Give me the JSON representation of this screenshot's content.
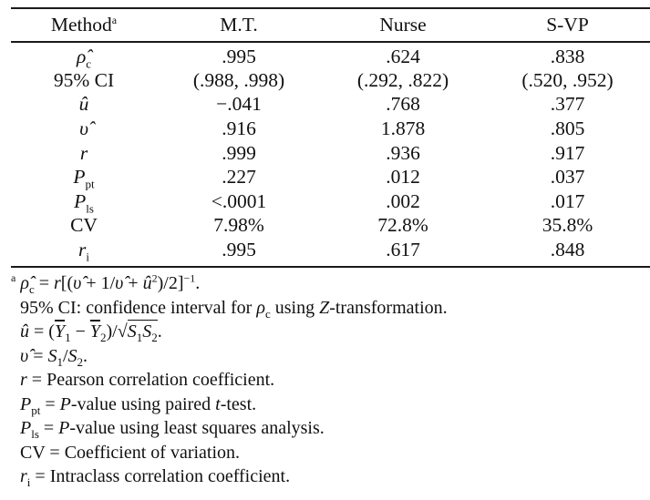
{
  "table": {
    "columns": [
      {
        "label": "Method",
        "footnote_marker": "a"
      },
      {
        "label": "M.T."
      },
      {
        "label": "Nurse"
      },
      {
        "label": "S-VP"
      }
    ],
    "rows": [
      {
        "stat": "ρ̂",
        "stat_sub": "c",
        "italic": true,
        "values": [
          ".995",
          ".624",
          ".838"
        ]
      },
      {
        "stat": "95% CI",
        "stat_sub": "",
        "italic": false,
        "values": [
          "(.988, .998)",
          "(.292, .822)",
          "(.520, .952)"
        ]
      },
      {
        "stat": "û",
        "stat_sub": "",
        "italic": true,
        "values": [
          "−.041",
          ".768",
          ".377"
        ]
      },
      {
        "stat": "υ̂",
        "stat_sub": "",
        "italic": true,
        "values": [
          ".916",
          "1.878",
          ".805"
        ]
      },
      {
        "stat": "r",
        "stat_sub": "",
        "italic": true,
        "values": [
          ".999",
          ".936",
          ".917"
        ]
      },
      {
        "stat": "P",
        "stat_sub": "pt",
        "italic": true,
        "values": [
          ".227",
          ".012",
          ".037"
        ]
      },
      {
        "stat": "P",
        "stat_sub": "ls",
        "italic": true,
        "values": [
          "<.0001",
          ".002",
          ".017"
        ]
      },
      {
        "stat": "CV",
        "stat_sub": "",
        "italic": false,
        "values": [
          "7.98%",
          "72.8%",
          "35.8%"
        ]
      },
      {
        "stat": "r",
        "stat_sub": "i",
        "italic": true,
        "values": [
          ".995",
          ".617",
          ".848"
        ]
      }
    ]
  },
  "footnotes": {
    "marker": "a",
    "rho_def": {
      "lhs": "ρ̂",
      "lhs_sub": "c",
      "eq": " = ",
      "r": "r",
      "body_1": "[(",
      "v1": "υ̂",
      "plus1": " + 1/",
      "v2": "υ̂",
      "plus2": " + ",
      "u": "û",
      "sq": "2",
      "body_2": ")/2]",
      "exp": "−1",
      "end": "."
    },
    "ci_def": {
      "prefix": "95% CI: confidence interval for ",
      "rho": "ρ",
      "rho_sub": "c",
      "suffix_1": " using ",
      "z": "Z",
      "suffix_2": "-transformation."
    },
    "u_def": {
      "lhs": "û",
      "eq": " = (",
      "y1": "Y",
      "y1_sub": "1",
      "minus": " − ",
      "y2": "Y",
      "y2_sub": "2",
      "div": ")/√",
      "s1": "S",
      "s1_sub": "1",
      "s2": "S",
      "s2_sub": "2",
      "end": "."
    },
    "v_def": {
      "lhs": "υ̂",
      "eq": " = ",
      "s1": "S",
      "s1_sub": "1",
      "slash": "/",
      "s2": "S",
      "s2_sub": "2",
      "end": "."
    },
    "r_def": {
      "sym": "r",
      "text": " = Pearson correlation coefficient."
    },
    "ppt_def": {
      "sym": "P",
      "sub": "pt",
      "eq": " = ",
      "p": "P",
      "text_1": "-value using paired ",
      "t": "t",
      "text_2": "-test."
    },
    "pls_def": {
      "sym": "P",
      "sub": "ls",
      "eq": " = ",
      "p": "P",
      "text": "-value using least squares analysis."
    },
    "cv_def": {
      "text": "CV = Coefficient of variation."
    },
    "ri_def": {
      "sym": "r",
      "sub": "i",
      "text": " = Intraclass correlation coefficient."
    }
  }
}
